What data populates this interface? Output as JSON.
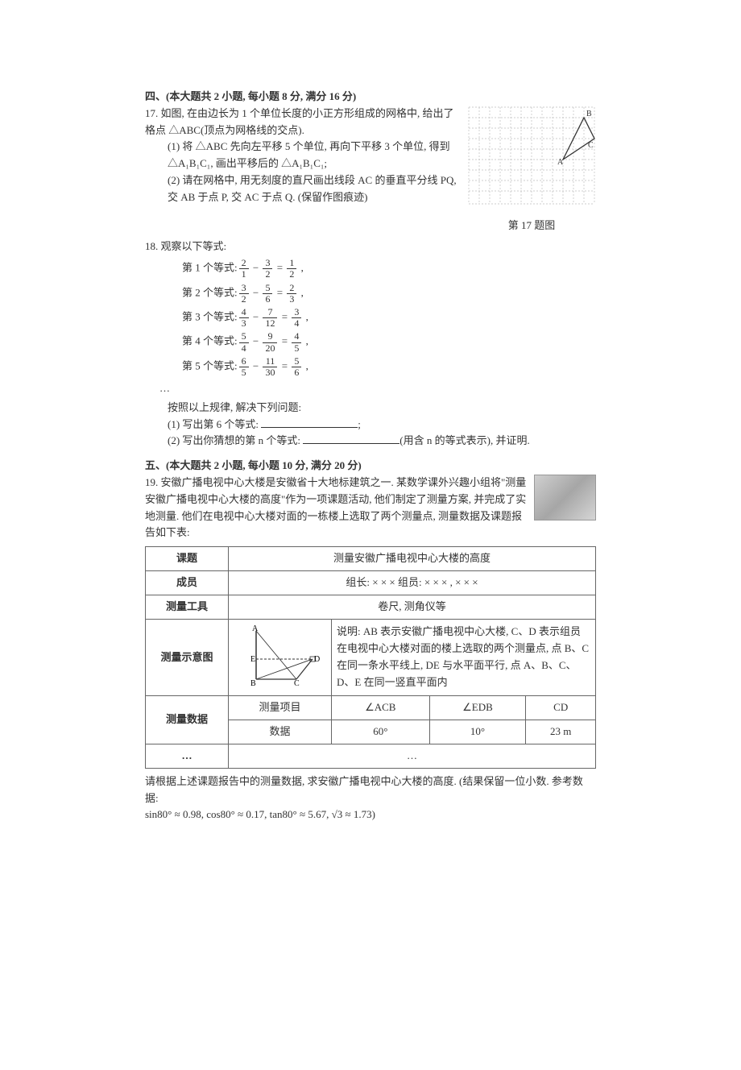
{
  "section4": {
    "title": "四、(本大题共 2 小题, 每小题 8 分, 满分 16 分)"
  },
  "q17": {
    "number": "17.",
    "intro": "如图, 在由边长为 1 个单位长度的小正方形组成的网格中, 给出了格点 △ABC(顶点为网格线的交点).",
    "part1": "(1) 将 △ABC 先向左平移 5 个单位, 再向下平移 3 个单位, 得到 △A₁B₁C₁, 画出平移后的 △A₁B₁C₁;",
    "part2": "(2) 请在网格中, 用无刻度的直尺画出线段 AC 的垂直平分线 PQ, 交 AB 于点 P, 交 AC 于点 Q. (保留作图痕迹)",
    "caption": "第 17 题图",
    "labels": {
      "A": "A",
      "B": "B",
      "C": "C"
    },
    "grid": {
      "cols": 12,
      "rows": 9,
      "cell": 13,
      "stroke": "#bdbdbd",
      "border": "#777"
    }
  },
  "q18": {
    "number": "18.",
    "intro": "观察以下等式:",
    "eqs": [
      {
        "label": "第 1 个等式:",
        "a": [
          "2",
          "1"
        ],
        "b": [
          "3",
          "2"
        ],
        "c": [
          "1",
          "2"
        ]
      },
      {
        "label": "第 2 个等式:",
        "a": [
          "3",
          "2"
        ],
        "b": [
          "5",
          "6"
        ],
        "c": [
          "2",
          "3"
        ]
      },
      {
        "label": "第 3 个等式:",
        "a": [
          "4",
          "3"
        ],
        "b": [
          "7",
          "12"
        ],
        "c": [
          "3",
          "4"
        ]
      },
      {
        "label": "第 4 个等式:",
        "a": [
          "5",
          "4"
        ],
        "b": [
          "9",
          "20"
        ],
        "c": [
          "4",
          "5"
        ]
      },
      {
        "label": "第 5 个等式:",
        "a": [
          "6",
          "5"
        ],
        "b": [
          "11",
          "30"
        ],
        "c": [
          "5",
          "6"
        ]
      }
    ],
    "dots": "…",
    "followup": "按照以上规律, 解决下列问题:",
    "p1": "(1) 写出第 6 个等式: ",
    "p1_tail": ";",
    "p2_pre": "(2) 写出你猜想的第 n 个等式: ",
    "p2_tail": "(用含 n 的等式表示), 并证明."
  },
  "section5": {
    "title": "五、(本大题共 2 小题, 每小题 10 分, 满分 20 分)"
  },
  "q19": {
    "number": "19.",
    "intro": "安徽广播电视中心大楼是安徽省十大地标建筑之一. 某数学课外兴趣小组将\"测量安徽广播电视中心大楼的高度\"作为一项课题活动, 他们制定了测量方案, 并完成了实地测量. 他们在电视中心大楼对面的一栋楼上选取了两个测量点, 测量数据及课题报告如下表:",
    "table": {
      "rows": {
        "topic_h": "课题",
        "topic_v": "测量安徽广播电视中心大楼的高度",
        "members_h": "成员",
        "members_v": "组长: × × ×    组员: × × × , × × ×",
        "tools_h": "测量工具",
        "tools_v": "卷尺, 测角仪等",
        "diagram_h": "测量示意图",
        "diagram_desc": "说明: AB 表示安徽广播电视中心大楼, C、D 表示组员在电视中心大楼对面的楼上选取的两个测量点, 点 B、C 在同一条水平线上, DE 与水平面平行, 点 A、B、C、D、E 在同一竖直平面内",
        "data_h": "测量数据",
        "item_h": "测量项目",
        "acb": "∠ACB",
        "edb": "∠EDB",
        "cd": "CD",
        "data_l": "数据",
        "acb_v": "60°",
        "edb_v": "10°",
        "cd_v": "23 m",
        "ellipsis": "…"
      },
      "diagram_labels": {
        "A": "A",
        "B": "B",
        "C": "C",
        "D": "D",
        "E": "E"
      }
    },
    "tail1": "请根据上述课题报告中的测量数据, 求安徽广播电视中心大楼的高度. (结果保留一位小数. 参考数据:",
    "tail2": "sin80° ≈ 0.98, cos80° ≈ 0.17, tan80° ≈ 5.67, √3 ≈ 1.73)"
  }
}
